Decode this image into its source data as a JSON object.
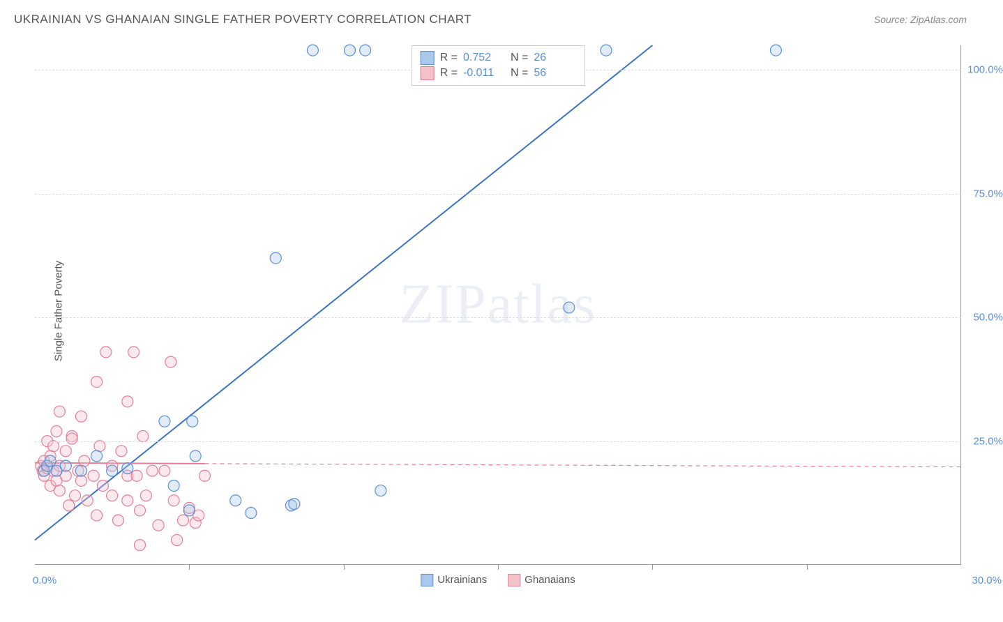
{
  "title": "UKRAINIAN VS GHANAIAN SINGLE FATHER POVERTY CORRELATION CHART",
  "source_label": "Source: ZipAtlas.com",
  "y_axis_label": "Single Father Poverty",
  "watermark": {
    "zip": "ZIP",
    "atlas": "atlas"
  },
  "chart": {
    "type": "scatter",
    "background_color": "#ffffff",
    "grid_color": "#dddddd",
    "axis_color": "#999999",
    "tick_label_color": "#5a8fd6",
    "xlim": [
      0,
      30
    ],
    "ylim": [
      0,
      105
    ],
    "x_ticks": [
      0,
      5,
      10,
      15,
      20,
      25,
      30
    ],
    "x_tick_labels_shown": {
      "0": "0.0%",
      "30": "30.0%"
    },
    "y_ticks": [
      25,
      50,
      75,
      100
    ],
    "y_tick_labels": {
      "25": "25.0%",
      "50": "50.0%",
      "75": "75.0%",
      "100": "100.0%"
    },
    "marker_radius": 8,
    "marker_fill_opacity": 0.35,
    "marker_stroke_width": 1.2,
    "line_width": 2,
    "dash_pattern": "6 5"
  },
  "series": [
    {
      "name": "Ukrainians",
      "fill": "#a9c8ec",
      "stroke": "#5a8fd6",
      "line_color": "#3b73c8",
      "r_label": "R =",
      "r_value": "0.752",
      "n_label": "N =",
      "n_value": "26",
      "regression": {
        "x1": 0,
        "y1": 5,
        "x2": 20,
        "y2": 105,
        "solid_until_x": 20
      },
      "points": [
        [
          0.3,
          19
        ],
        [
          0.4,
          20
        ],
        [
          0.5,
          21
        ],
        [
          0.7,
          19
        ],
        [
          1.0,
          20
        ],
        [
          1.5,
          19
        ],
        [
          2.0,
          22
        ],
        [
          2.5,
          19
        ],
        [
          3.0,
          19.5
        ],
        [
          4.2,
          29
        ],
        [
          4.5,
          16
        ],
        [
          5.0,
          11
        ],
        [
          5.1,
          29
        ],
        [
          5.2,
          22
        ],
        [
          6.5,
          13
        ],
        [
          7.0,
          10.5
        ],
        [
          8.3,
          12
        ],
        [
          8.4,
          12.3
        ],
        [
          7.8,
          62
        ],
        [
          11.2,
          15
        ],
        [
          9.0,
          104
        ],
        [
          10.2,
          104
        ],
        [
          10.7,
          104
        ],
        [
          17.3,
          52
        ],
        [
          18.5,
          104
        ],
        [
          24.0,
          104
        ]
      ]
    },
    {
      "name": "Ghanaians",
      "fill": "#f4c0ca",
      "stroke": "#e37f98",
      "line_color": "#e37f98",
      "r_label": "R =",
      "r_value": "-0.011",
      "n_label": "N =",
      "n_value": "56",
      "regression": {
        "x1": 0,
        "y1": 20.6,
        "x2": 30,
        "y2": 19.8,
        "solid_until_x": 5.5
      },
      "points": [
        [
          0.2,
          20
        ],
        [
          0.25,
          19
        ],
        [
          0.3,
          18
        ],
        [
          0.3,
          21
        ],
        [
          0.4,
          19.5
        ],
        [
          0.4,
          25
        ],
        [
          0.5,
          16
        ],
        [
          0.5,
          22
        ],
        [
          0.6,
          19
        ],
        [
          0.6,
          24
        ],
        [
          0.7,
          17
        ],
        [
          0.7,
          27
        ],
        [
          0.8,
          15
        ],
        [
          0.8,
          20
        ],
        [
          0.8,
          31
        ],
        [
          1.0,
          18
        ],
        [
          1.0,
          23
        ],
        [
          1.1,
          12
        ],
        [
          1.2,
          26
        ],
        [
          1.2,
          25.5
        ],
        [
          1.3,
          14
        ],
        [
          1.4,
          19
        ],
        [
          1.5,
          30
        ],
        [
          1.5,
          17
        ],
        [
          1.6,
          21
        ],
        [
          1.7,
          13
        ],
        [
          1.9,
          18
        ],
        [
          2.0,
          37
        ],
        [
          2.0,
          10
        ],
        [
          2.1,
          24
        ],
        [
          2.2,
          16
        ],
        [
          2.3,
          43
        ],
        [
          2.5,
          20
        ],
        [
          2.5,
          14
        ],
        [
          2.7,
          9
        ],
        [
          2.8,
          23
        ],
        [
          3.0,
          13
        ],
        [
          3.0,
          18
        ],
        [
          3.0,
          33
        ],
        [
          3.2,
          43
        ],
        [
          3.3,
          18
        ],
        [
          3.4,
          11
        ],
        [
          3.4,
          4
        ],
        [
          3.5,
          26
        ],
        [
          3.6,
          14
        ],
        [
          3.8,
          19
        ],
        [
          4.0,
          8
        ],
        [
          4.2,
          19
        ],
        [
          4.4,
          41
        ],
        [
          4.5,
          13
        ],
        [
          4.6,
          5
        ],
        [
          4.8,
          9
        ],
        [
          5.0,
          11.5
        ],
        [
          5.2,
          8.5
        ],
        [
          5.3,
          10
        ],
        [
          5.5,
          18
        ]
      ]
    }
  ],
  "legend_bottom": [
    {
      "label": "Ukrainians",
      "fill": "#a9c8ec",
      "stroke": "#5a8fd6"
    },
    {
      "label": "Ghanaians",
      "fill": "#f4c0ca",
      "stroke": "#e37f98"
    }
  ]
}
